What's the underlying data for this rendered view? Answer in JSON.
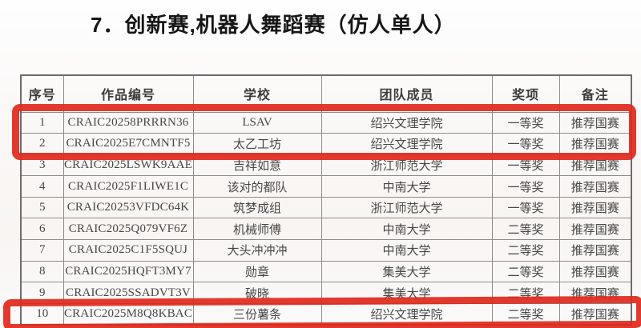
{
  "title": "7．创新赛,机器人舞蹈赛（仿人单人）",
  "table": {
    "columns": [
      "序号",
      "作品编号",
      "学校",
      "团队成员",
      "奖项",
      "备注"
    ],
    "rows": [
      [
        "1",
        "CRAIC20258PRRRN36",
        "LSAV",
        "绍兴文理学院",
        "一等奖",
        "推荐国赛"
      ],
      [
        "2",
        "CRAIC2025E7CMNTF5",
        "太乙工坊",
        "绍兴文理学院",
        "一等奖",
        "推荐国赛"
      ],
      [
        "3",
        "CRAIC2025LSWK9AAE",
        "吉祥如意",
        "浙江师范大学",
        "一等奖",
        "推荐国赛"
      ],
      [
        "4",
        "CRAIC2025F1LIWE1C",
        "该对的都队",
        "中南大学",
        "一等奖",
        "推荐国赛"
      ],
      [
        "5",
        "CRAIC20253VFDC64K",
        "筑梦成组",
        "浙江师范大学",
        "一等奖",
        "推荐国赛"
      ],
      [
        "6",
        "CRAIC2025Q079VF6Z",
        "机械师傅",
        "中南大学",
        "二等奖",
        "推荐国赛"
      ],
      [
        "7",
        "CRAIC2025C1F5SQUJ",
        "大头冲冲冲",
        "中南大学",
        "二等奖",
        "推荐国赛"
      ],
      [
        "8",
        "CRAIC2025HQFT3MY7",
        "勋章",
        "集美大学",
        "二等奖",
        "推荐国赛"
      ],
      [
        "9",
        "CRAIC2025SSADVT3V",
        "破晓",
        "集美大学",
        "二等奖",
        "推荐国赛"
      ],
      [
        "10",
        "CRAIC2025M8Q8KBAC",
        "三份薯条",
        "绍兴文理学院",
        "二等奖",
        "推荐国赛"
      ]
    ]
  },
  "annotation": {
    "highlight_color": "#e0281c",
    "highlighted_rows": [
      "1",
      "2",
      "10"
    ]
  }
}
